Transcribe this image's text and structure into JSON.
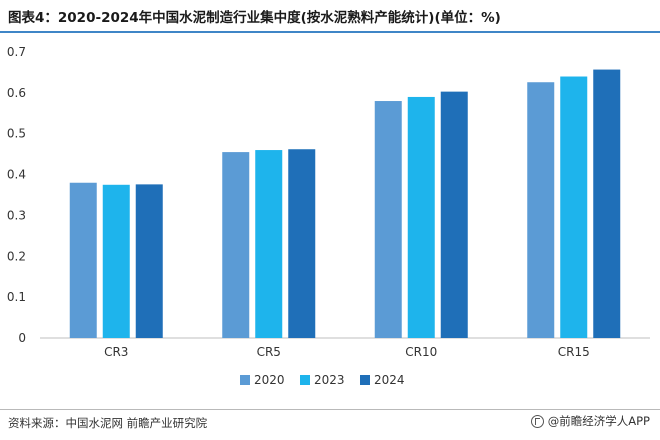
{
  "title": "图表4：2020-2024年中国水泥制造行业集中度(按水泥熟料产能统计)(单位：%)",
  "source": "资料来源：中国水泥网 前瞻产业研究院",
  "brand": "@前瞻经济学人APP",
  "colors": {
    "accent": "#3f86c7",
    "series": [
      "#5b9bd5",
      "#1eb4ec",
      "#1f6fb8"
    ]
  },
  "chart_data": {
    "type": "bar",
    "title": "",
    "xlabel": "",
    "ylabel": "",
    "categories": [
      "CR3",
      "CR5",
      "CR10",
      "CR15"
    ],
    "series": [
      {
        "name": "2020",
        "values": [
          0.38,
          0.455,
          0.58,
          0.626
        ]
      },
      {
        "name": "2023",
        "values": [
          0.375,
          0.46,
          0.59,
          0.64
        ]
      },
      {
        "name": "2024",
        "values": [
          0.376,
          0.462,
          0.603,
          0.657
        ]
      }
    ],
    "ylim": [
      0,
      0.7
    ],
    "yticks": [
      "0",
      "0.1",
      "0.2",
      "0.3",
      "0.4",
      "0.5",
      "0.6",
      "0.7"
    ],
    "grid": false,
    "legend": "bottom"
  }
}
